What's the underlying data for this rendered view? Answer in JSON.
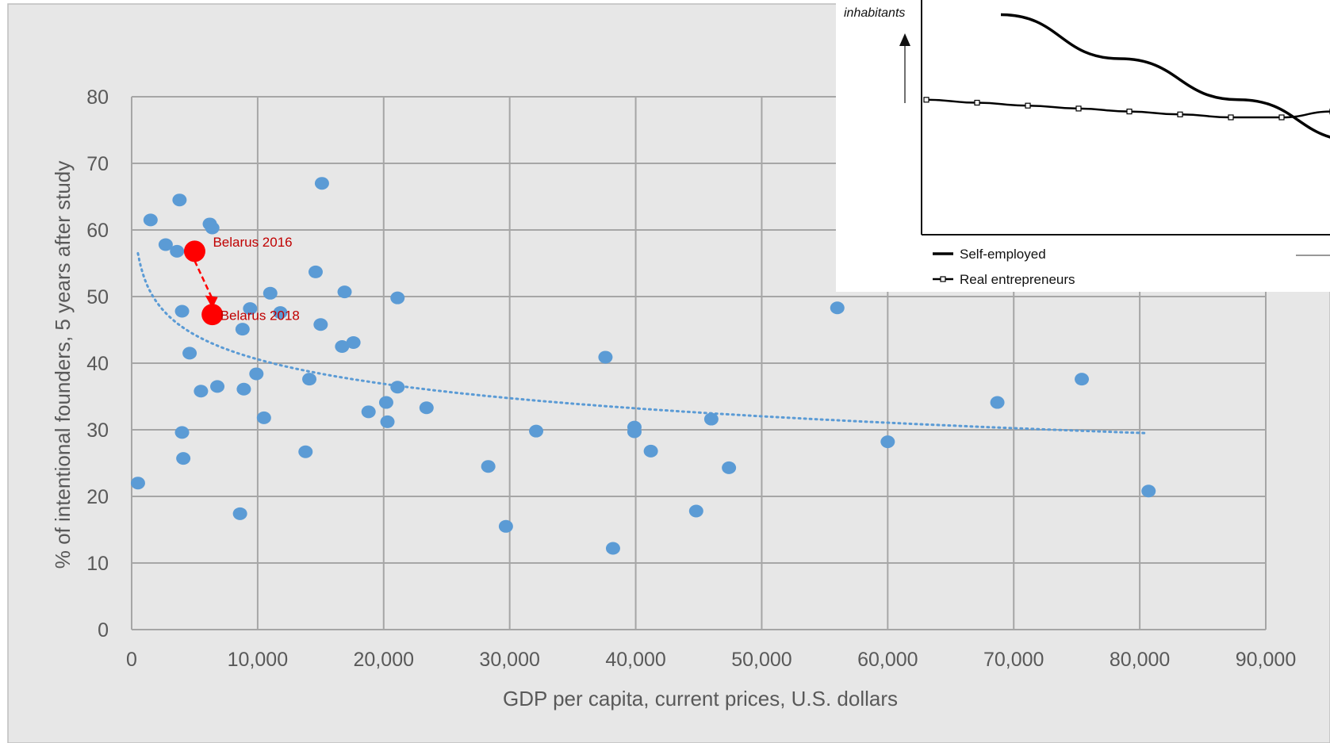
{
  "chart_data": [
    {
      "type": "scatter",
      "title": "",
      "xlabel": "GDP per capita, current prices, U.S. dollars",
      "ylabel": "% of intentional founders, 5 years after study",
      "xlim": [
        0,
        90000
      ],
      "ylim": [
        0,
        80
      ],
      "x_ticks": [
        "0",
        "10,000",
        "20,000",
        "30,000",
        "40,000",
        "50,000",
        "60,000",
        "70,000",
        "80,000",
        "90,000"
      ],
      "y_ticks": [
        "0",
        "10",
        "20",
        "30",
        "40",
        "50",
        "60",
        "70",
        "80"
      ],
      "grid": true,
      "colors": {
        "points": "#5b9bd5",
        "highlight": "#ff0000",
        "trend": "#5b9bd5",
        "grid": "#a6a6a6",
        "background": "#e7e7e7",
        "annotation": "#c00000"
      },
      "series": [
        {
          "points": [
            [
              500,
              22
            ],
            [
              1500,
              61.5
            ],
            [
              2700,
              57.8
            ],
            [
              3600,
              56.8
            ],
            [
              3800,
              64.5
            ],
            [
              4000,
              47.8
            ],
            [
              4000,
              29.6
            ],
            [
              4100,
              25.7
            ],
            [
              4600,
              41.5
            ],
            [
              5500,
              35.8
            ],
            [
              6200,
              60.9
            ],
            [
              6400,
              60.3
            ],
            [
              6800,
              36.5
            ],
            [
              8600,
              17.4
            ],
            [
              8800,
              45.1
            ],
            [
              8900,
              36.1
            ],
            [
              9400,
              48.2
            ],
            [
              9900,
              38.4
            ],
            [
              10500,
              31.8
            ],
            [
              11000,
              50.5
            ],
            [
              11800,
              47.6
            ],
            [
              13800,
              26.7
            ],
            [
              14100,
              37.6
            ],
            [
              14600,
              53.7
            ],
            [
              15000,
              45.8
            ],
            [
              15100,
              67
            ],
            [
              16700,
              42.5
            ],
            [
              16900,
              50.7
            ],
            [
              17600,
              43.1
            ],
            [
              18800,
              32.7
            ],
            [
              20200,
              34.1
            ],
            [
              20300,
              31.2
            ],
            [
              21100,
              49.8
            ],
            [
              21100,
              36.4
            ],
            [
              23400,
              33.3
            ],
            [
              28300,
              24.5
            ],
            [
              29700,
              15.5
            ],
            [
              32100,
              29.8
            ],
            [
              37600,
              40.9
            ],
            [
              38200,
              12.2
            ],
            [
              39900,
              30.4
            ],
            [
              39900,
              29.7
            ],
            [
              41200,
              26.8
            ],
            [
              44800,
              17.8
            ],
            [
              46000,
              31.6
            ],
            [
              47400,
              24.3
            ],
            [
              56000,
              48.3
            ],
            [
              60000,
              28.2
            ],
            [
              68700,
              34.1
            ],
            [
              75400,
              37.6
            ],
            [
              80700,
              20.8
            ]
          ]
        },
        {
          "highlight": true,
          "points": [
            [
              5000,
              56.8,
              "Belarus 2016"
            ],
            [
              6400,
              47.3,
              "Belarus 2018"
            ]
          ]
        }
      ],
      "trendline": {
        "type": "logarithmic",
        "x": [
          500,
          80500
        ],
        "y": [
          56.5,
          29.5
        ]
      },
      "annotations": [
        "Belarus 2016",
        "Belarus 2018"
      ]
    },
    {
      "type": "line",
      "y_axis_label": "inhabitants",
      "legend": [
        "Self-employed",
        "Real entrepreneurs"
      ],
      "series": [
        {
          "name": "Self-employed",
          "values": [
            7.5,
            6.0,
            4.6,
            3.2,
            2.8,
            3.1
          ]
        },
        {
          "name": "Real entrepreneurs",
          "values": [
            4.6,
            4.5,
            4.4,
            4.3,
            4.2,
            4.1,
            4.0,
            4.0,
            4.2,
            4.7
          ]
        }
      ]
    }
  ]
}
